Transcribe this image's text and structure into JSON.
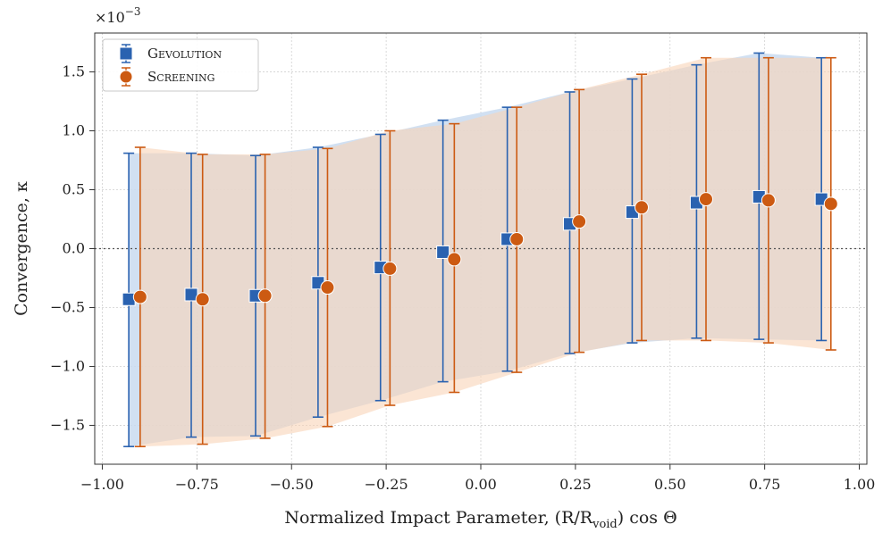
{
  "chart_data": {
    "type": "scatter",
    "title": "",
    "xlabel": "Normalized Impact Parameter, (R/R",
    "xlabel_sub": "void",
    "xlabel_suffix": ") cos Θ",
    "ylabel": "Convergence, κ",
    "y_multiplier": "×10",
    "y_multiplier_exp": "−3",
    "xlim": [
      -1.02,
      1.02
    ],
    "ylim": [
      -1.83,
      1.83
    ],
    "xticks": [
      -1.0,
      -0.75,
      -0.5,
      -0.25,
      0.0,
      0.25,
      0.5,
      0.75,
      1.0
    ],
    "xtick_labels": [
      "−1.00",
      "−0.75",
      "−0.50",
      "−0.25",
      "0.00",
      "0.25",
      "0.50",
      "0.75",
      "1.00"
    ],
    "yticks": [
      -1.5,
      -1.0,
      -0.5,
      0.0,
      0.5,
      1.0,
      1.5
    ],
    "ytick_labels": [
      "−1.5",
      "−1.0",
      "−0.5",
      "0.0",
      "0.5",
      "1.0",
      "1.5"
    ],
    "grid": true,
    "legend_position": "top-left",
    "reference_line_y": 0.0,
    "series": [
      {
        "name": "Gevolution",
        "marker": "square",
        "color": "#2a62b0",
        "band_color": "#c9daf0",
        "x": [
          -0.93,
          -0.765,
          -0.595,
          -0.43,
          -0.265,
          -0.1,
          0.07,
          0.235,
          0.4,
          0.57,
          0.735,
          0.9
        ],
        "y": [
          -0.43,
          -0.39,
          -0.4,
          -0.29,
          -0.16,
          -0.03,
          0.08,
          0.21,
          0.31,
          0.39,
          0.44,
          0.42
        ],
        "lower": [
          -1.68,
          -1.6,
          -1.59,
          -1.43,
          -1.29,
          -1.13,
          -1.04,
          -0.89,
          -0.8,
          -0.76,
          -0.77,
          -0.78
        ],
        "upper": [
          0.81,
          0.81,
          0.79,
          0.86,
          0.97,
          1.09,
          1.2,
          1.33,
          1.44,
          1.56,
          1.66,
          1.62
        ]
      },
      {
        "name": "Screening",
        "marker": "circle",
        "color": "#cc5a12",
        "band_color": "#f8d4b8",
        "x": [
          -0.9,
          -0.735,
          -0.57,
          -0.405,
          -0.24,
          -0.07,
          0.095,
          0.26,
          0.425,
          0.595,
          0.76,
          0.925
        ],
        "y": [
          -0.41,
          -0.43,
          -0.4,
          -0.33,
          -0.17,
          -0.09,
          0.08,
          0.23,
          0.35,
          0.42,
          0.41,
          0.38
        ],
        "lower": [
          -1.68,
          -1.66,
          -1.61,
          -1.51,
          -1.33,
          -1.22,
          -1.05,
          -0.88,
          -0.78,
          -0.78,
          -0.8,
          -0.86
        ],
        "upper": [
          0.86,
          0.8,
          0.8,
          0.85,
          1.0,
          1.06,
          1.2,
          1.35,
          1.48,
          1.62,
          1.62,
          1.62
        ]
      }
    ]
  }
}
